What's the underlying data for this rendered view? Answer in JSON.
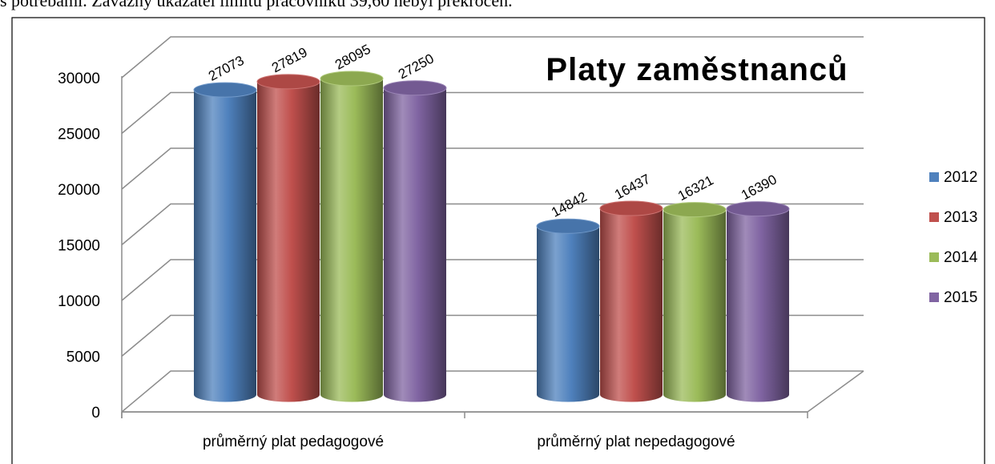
{
  "page_text": "s potřebami. Závazný ukazatel limitu pracovníků 39,60 nebyl překročen.",
  "chart_data": {
    "type": "bar",
    "style": "3d-cylinder",
    "title": "Platy zaměstnanců",
    "categories": [
      "průměrný plat pedagogové",
      "průměrný plat nepedagogové"
    ],
    "series": [
      {
        "name": "2012",
        "color": "#4f81bd",
        "values": [
          27073,
          14842
        ]
      },
      {
        "name": "2013",
        "color": "#c0504d",
        "values": [
          27819,
          16437
        ]
      },
      {
        "name": "2014",
        "color": "#9bbb59",
        "values": [
          28095,
          16321
        ]
      },
      {
        "name": "2015",
        "color": "#8064a2",
        "values": [
          27250,
          16390
        ]
      }
    ],
    "ylim": [
      0,
      30000
    ],
    "yticks": [
      0,
      5000,
      10000,
      15000,
      20000,
      25000,
      30000
    ],
    "grid": true,
    "legend": "right",
    "data_labels": true
  }
}
